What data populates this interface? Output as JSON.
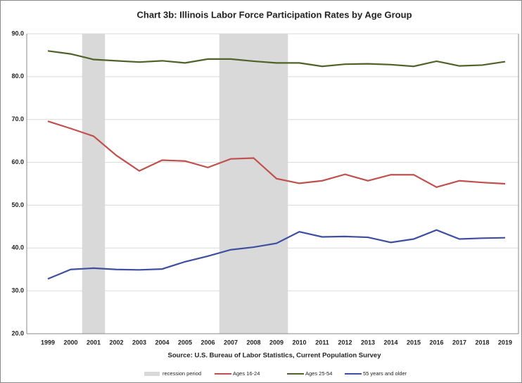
{
  "chart_data": {
    "type": "line",
    "title": "Chart 3b: Illinois Labor Force Participation Rates by Age Group",
    "source": "Source: U.S. Bureau of Labor Statistics, Current Population Survey",
    "categories": [
      "1999",
      "2000",
      "2001",
      "2002",
      "2003",
      "2004",
      "2005",
      "2006",
      "2007",
      "2008",
      "2009",
      "2010",
      "2011",
      "2012",
      "2013",
      "2014",
      "2015",
      "2016",
      "2017",
      "2018",
      "2019"
    ],
    "recession": {
      "name": "recession period",
      "color": "#d9d9d9",
      "periods": [
        {
          "start": "2001",
          "end": "2001"
        },
        {
          "start": "2007",
          "end": "2009"
        }
      ]
    },
    "series": [
      {
        "name": "Ages 16-24",
        "color": "#c0504d",
        "values": [
          69.6,
          67.9,
          66.1,
          61.6,
          58.0,
          60.5,
          60.3,
          58.8,
          60.8,
          61.0,
          56.2,
          55.1,
          55.7,
          57.2,
          55.7,
          57.1,
          57.1,
          54.2,
          55.7,
          55.3,
          55.0
        ]
      },
      {
        "name": "Ages 25-54",
        "color": "#4f6228",
        "values": [
          86.0,
          85.3,
          84.0,
          83.7,
          83.4,
          83.7,
          83.2,
          84.1,
          84.1,
          83.6,
          83.2,
          83.2,
          82.4,
          82.9,
          83.0,
          82.8,
          82.4,
          83.6,
          82.5,
          82.7,
          83.5
        ]
      },
      {
        "name": "55 years and older",
        "color": "#3f4fa0",
        "values": [
          32.8,
          35.0,
          35.3,
          35.0,
          34.9,
          35.1,
          36.8,
          38.1,
          39.6,
          40.2,
          41.1,
          43.8,
          42.6,
          42.7,
          42.5,
          41.3,
          42.1,
          44.2,
          42.1,
          42.3,
          42.4
        ]
      }
    ],
    "ylim": [
      20,
      90
    ],
    "yticks": [
      {
        "value": 20,
        "label": "20.0"
      },
      {
        "value": 30,
        "label": "30.0"
      },
      {
        "value": 40,
        "label": "40.0"
      },
      {
        "value": 50,
        "label": "50.0"
      },
      {
        "value": 60,
        "label": "60.0"
      },
      {
        "value": 70,
        "label": "70.0"
      },
      {
        "value": 80,
        "label": "80.0"
      },
      {
        "value": 90,
        "label": "90.0"
      }
    ],
    "grid": true
  }
}
